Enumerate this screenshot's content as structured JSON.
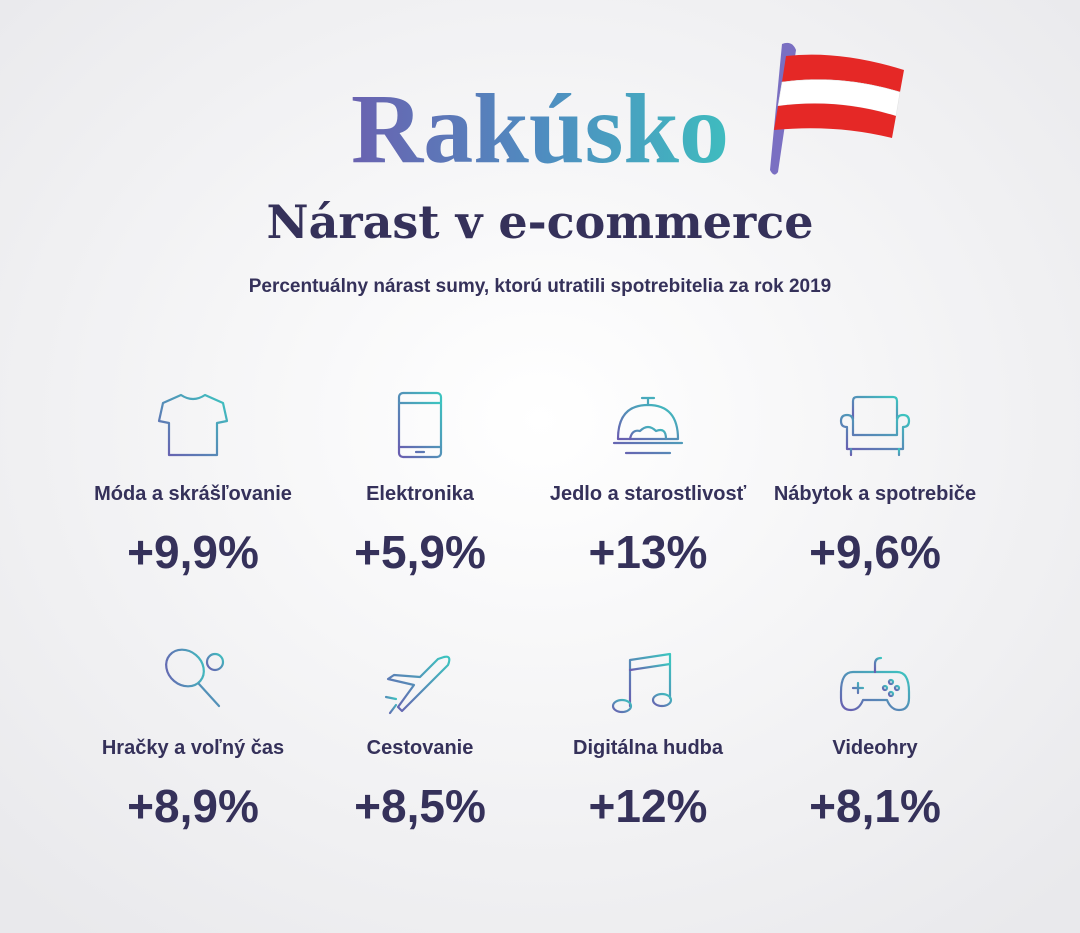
{
  "header": {
    "title": "Rakúsko",
    "subtitle": "Nárast v e-commerce",
    "caption": "Percentuálny nárast sumy, ktorú utratili spotrebitelia za rok 2019"
  },
  "items": [
    {
      "label": "Móda a skrášľovanie",
      "value": "+9,9%"
    },
    {
      "label": "Elektronika",
      "value": "+5,9%"
    },
    {
      "label": "Jedlo a starostlivosť",
      "value": "+13%"
    },
    {
      "label": "Nábytok a spotrebiče",
      "value": "+9,6%"
    },
    {
      "label": "Hračky a voľný čas",
      "value": "+8,9%"
    },
    {
      "label": "Cestovanie",
      "value": "+8,5%"
    },
    {
      "label": "Digitálna hudba",
      "value": "+12%"
    },
    {
      "label": "Videohry",
      "value": "+8,1%"
    }
  ]
}
